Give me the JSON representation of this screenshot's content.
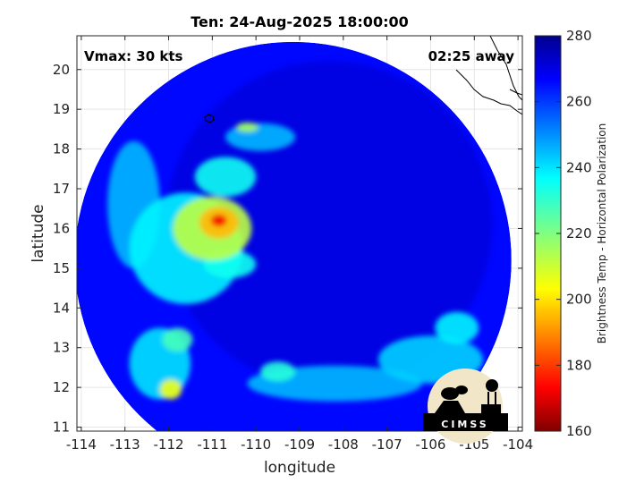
{
  "chart_data": {
    "type": "heatmap",
    "title": "Ten: 24-Aug-2025 18:00:00",
    "xlabel": "longitude",
    "ylabel": "latitude",
    "xlim": [
      -114.1,
      -103.9
    ],
    "ylim": [
      10.9,
      20.85
    ],
    "xticks": [
      -114,
      -113,
      -112,
      -111,
      -110,
      -109,
      -108,
      -107,
      -106,
      -105,
      -104
    ],
    "yticks": [
      11,
      12,
      13,
      14,
      15,
      16,
      17,
      18,
      19,
      20
    ],
    "annotations": {
      "vmax": "Vmax: 30 kts",
      "timing": "02:25 away"
    },
    "colorbar": {
      "label": "Brightness Temp - Horizontal Polarization",
      "range": [
        160,
        280
      ],
      "ticks": [
        160,
        180,
        200,
        220,
        240,
        260,
        280
      ],
      "colormap": "jet"
    },
    "swath": {
      "center": [
        -109.15,
        15.2
      ],
      "radius_deg": 5.0,
      "background_value": 266
    },
    "features": [
      {
        "name": "convective core",
        "lon": -110.85,
        "lat": 16.2,
        "value": 172,
        "rx": 0.18,
        "ry": 0.15
      },
      {
        "name": "core ring",
        "lon": -110.85,
        "lat": 16.15,
        "value": 195,
        "rx": 0.45,
        "ry": 0.4
      },
      {
        "name": "rain band inner",
        "lon": -111.0,
        "lat": 16.0,
        "value": 212,
        "rx": 0.9,
        "ry": 0.8
      },
      {
        "name": "rain band west",
        "lon": -111.6,
        "lat": 15.5,
        "value": 238,
        "rx": 1.3,
        "ry": 1.4
      },
      {
        "name": "band south",
        "lon": -110.6,
        "lat": 15.1,
        "value": 235,
        "rx": 0.6,
        "ry": 0.35
      },
      {
        "name": "band north",
        "lon": -110.7,
        "lat": 17.3,
        "value": 235,
        "rx": 0.7,
        "ry": 0.5
      },
      {
        "name": "north cell",
        "lon": -110.2,
        "lat": 18.55,
        "value": 215,
        "rx": 0.25,
        "ry": 0.12
      },
      {
        "name": "north patch",
        "lon": -109.9,
        "lat": 18.3,
        "value": 245,
        "rx": 0.8,
        "ry": 0.35
      },
      {
        "name": "southwest cell",
        "lon": -111.95,
        "lat": 11.95,
        "value": 205,
        "rx": 0.25,
        "ry": 0.25
      },
      {
        "name": "southwest band",
        "lon": -112.2,
        "lat": 12.6,
        "value": 240,
        "rx": 0.7,
        "ry": 0.9
      },
      {
        "name": "southwest patch",
        "lon": -111.8,
        "lat": 13.2,
        "value": 228,
        "rx": 0.35,
        "ry": 0.3
      },
      {
        "name": "south band",
        "lon": -108.2,
        "lat": 12.1,
        "value": 245,
        "rx": 2.0,
        "ry": 0.45
      },
      {
        "name": "southeast band",
        "lon": -106.0,
        "lat": 12.7,
        "value": 242,
        "rx": 1.2,
        "ry": 0.6
      },
      {
        "name": "southeast cell",
        "lon": -105.4,
        "lat": 13.5,
        "value": 238,
        "rx": 0.5,
        "ry": 0.4
      },
      {
        "name": "south cell",
        "lon": -109.5,
        "lat": 12.4,
        "value": 232,
        "rx": 0.4,
        "ry": 0.25
      },
      {
        "name": "west band",
        "lon": -112.8,
        "lat": 16.6,
        "value": 245,
        "rx": 0.6,
        "ry": 1.6
      }
    ]
  },
  "logo": {
    "text": "CIMSS"
  }
}
